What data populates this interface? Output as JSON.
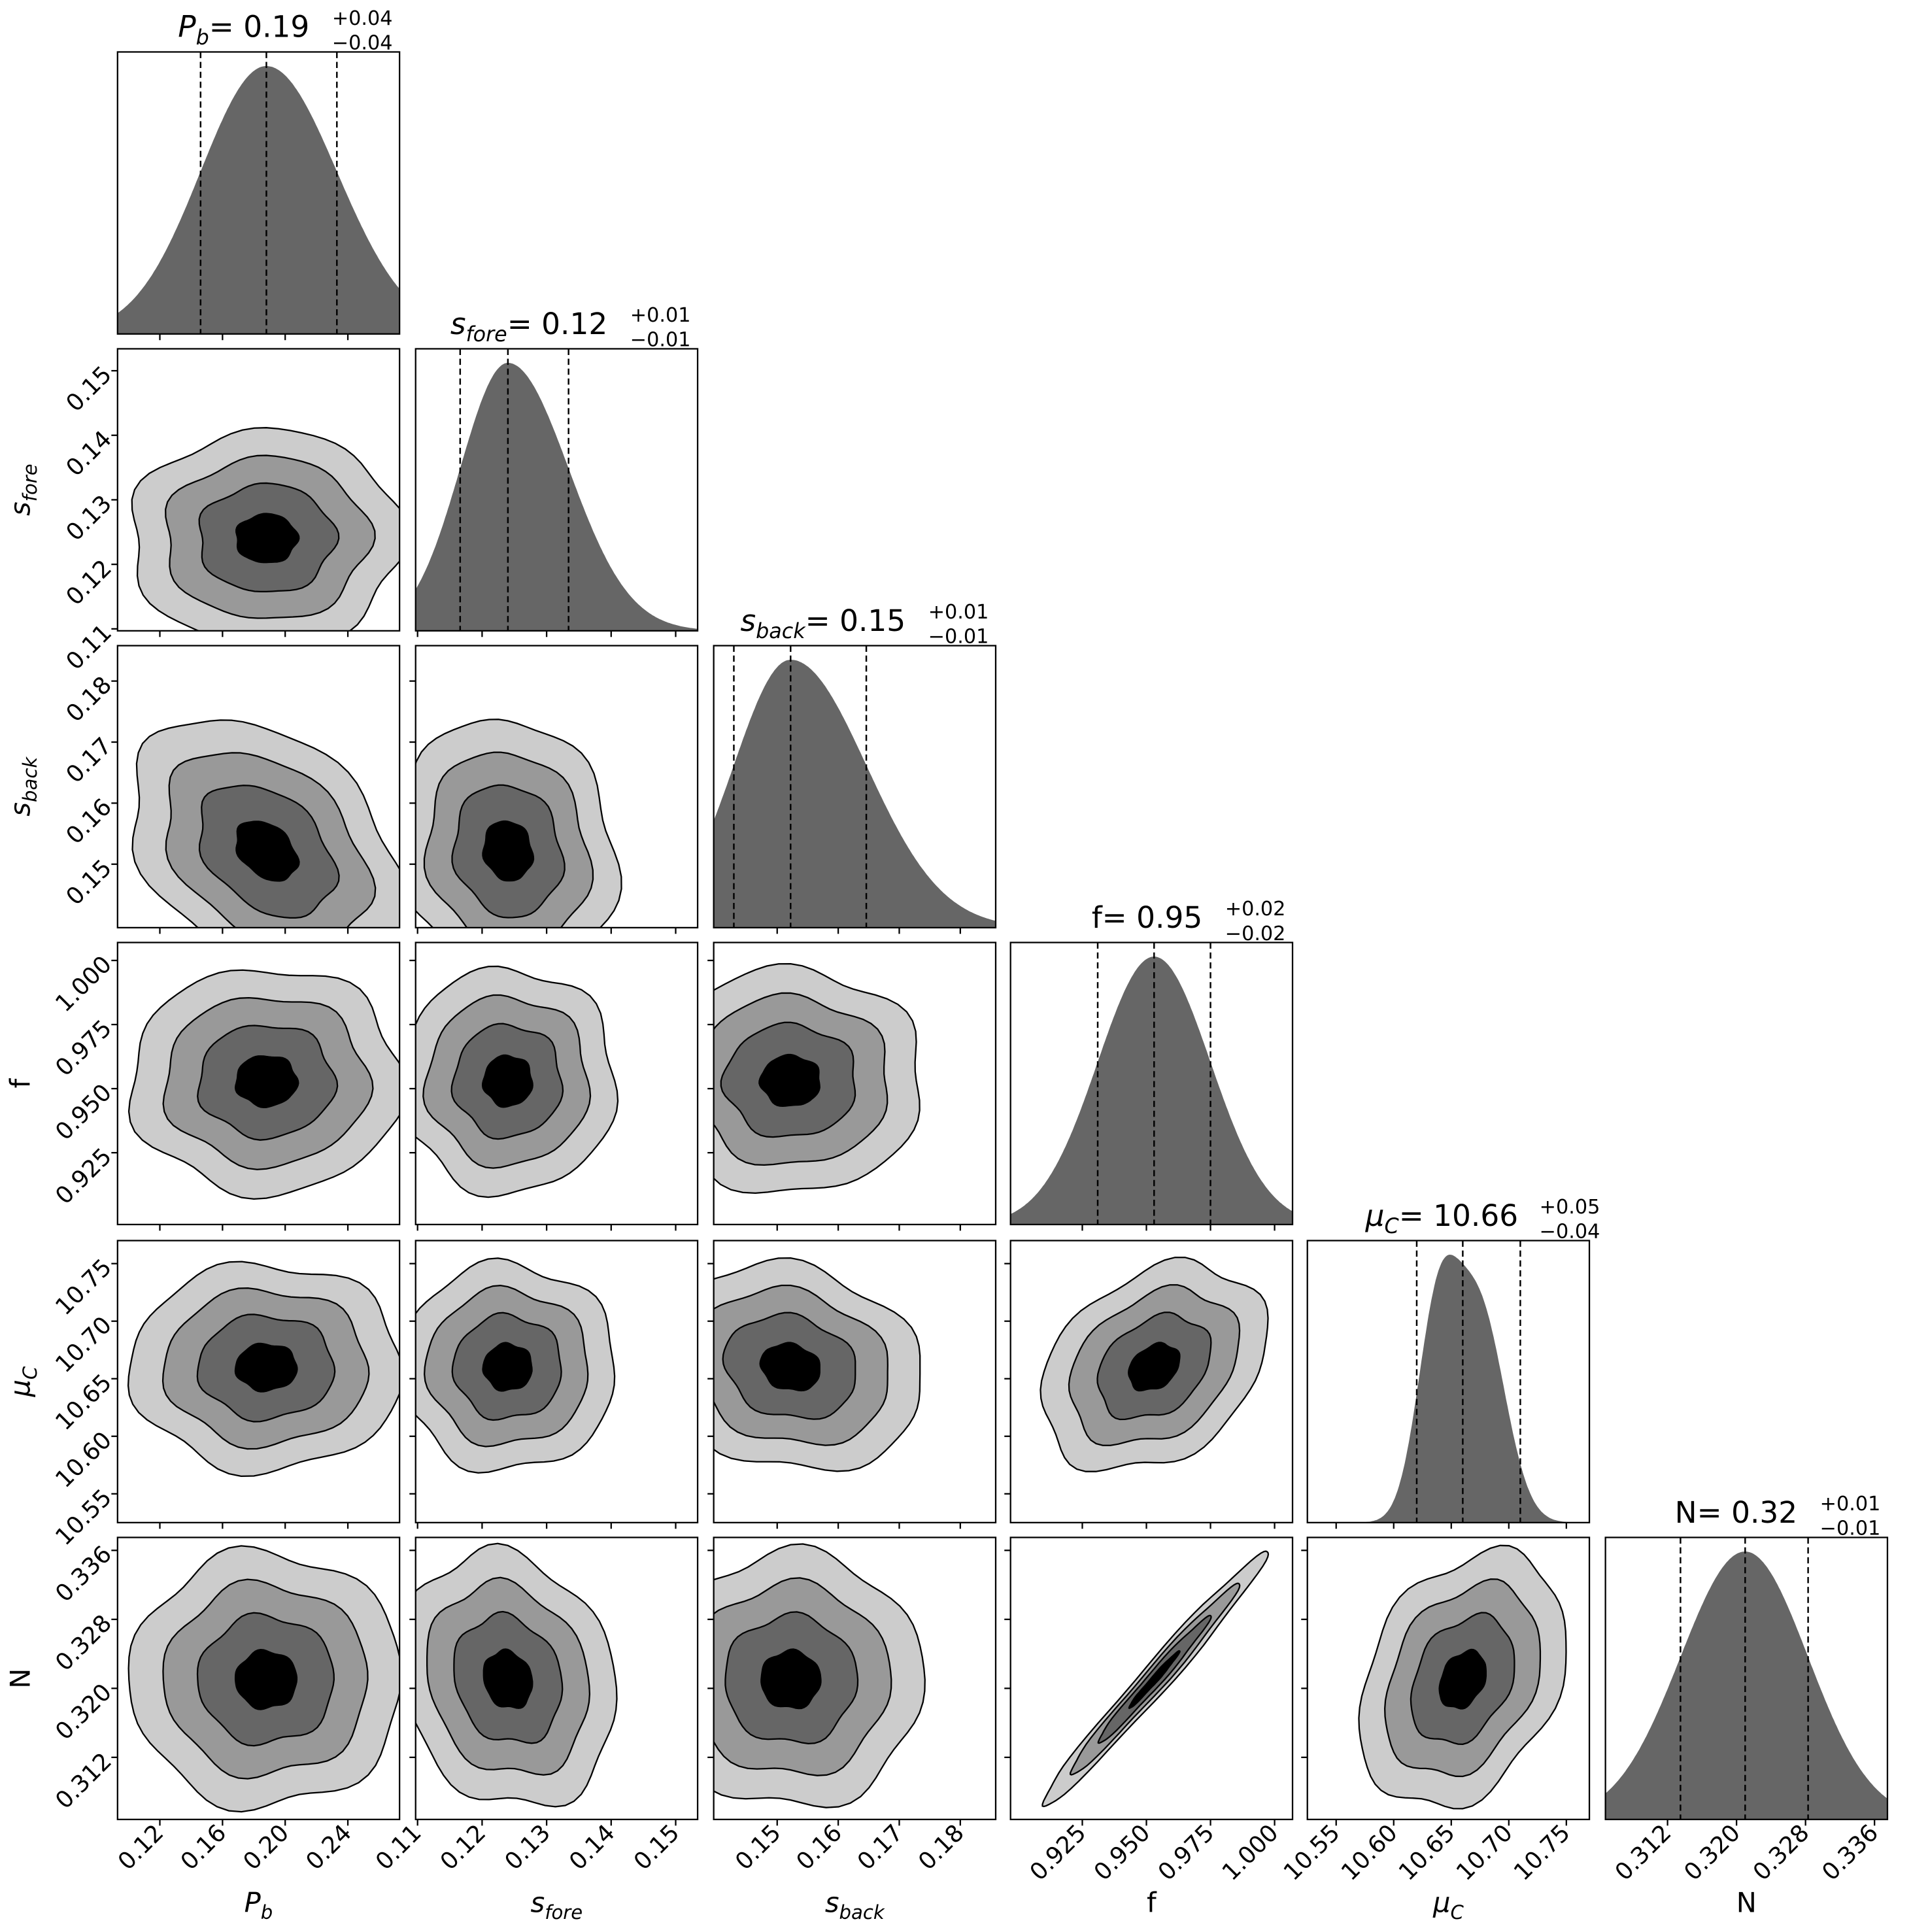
{
  "chart_data": {
    "type": "corner",
    "params": [
      {
        "id": "P_b",
        "label": {
          "main": "P",
          "sub": "b",
          "italic": true
        },
        "median": 0.188,
        "q16": 0.146,
        "q84": 0.233,
        "title": {
          "eq": " = 0.19",
          "plus": "+0.04",
          "minus": "−0.04"
        },
        "range": [
          0.093,
          0.273
        ],
        "ticks": [
          0.12,
          0.16,
          0.2,
          0.24
        ],
        "tick_labels": [
          "0.12",
          "0.16",
          "0.20",
          "0.24"
        ]
      },
      {
        "id": "s_fore",
        "label": {
          "main": "s",
          "sub": "fore",
          "italic": true
        },
        "median": 0.124,
        "q16": 0.1166,
        "q84": 0.1334,
        "title": {
          "eq": " = 0.12",
          "plus": "+0.01",
          "minus": "−0.01"
        },
        "range": [
          0.1097,
          0.1534
        ],
        "ticks": [
          0.11,
          0.12,
          0.13,
          0.14,
          0.15
        ],
        "tick_labels": [
          "0.11",
          "0.12",
          "0.13",
          "0.14",
          "0.15"
        ]
      },
      {
        "id": "s_back",
        "label": {
          "main": "s",
          "sub": "back",
          "italic": true
        },
        "median": 0.1522,
        "q16": 0.1429,
        "q84": 0.1646,
        "title": {
          "eq": " = 0.15",
          "plus": "+0.01",
          "minus": "−0.01"
        },
        "range": [
          0.1396,
          0.1858
        ],
        "ticks": [
          0.15,
          0.16,
          0.17,
          0.18
        ],
        "tick_labels": [
          "0.15",
          "0.16",
          "0.17",
          "0.18"
        ]
      },
      {
        "id": "f",
        "label": {
          "main": "f",
          "sub": "",
          "italic": false
        },
        "median": 0.953,
        "q16": 0.931,
        "q84": 0.975,
        "title": {
          "eq": " = 0.95",
          "plus": "+0.02",
          "minus": "−0.02"
        },
        "range": [
          0.897,
          1.007
        ],
        "ticks": [
          0.925,
          0.95,
          0.975,
          1.0
        ],
        "tick_labels": [
          "0.925",
          "0.950",
          "0.975",
          "1.000"
        ]
      },
      {
        "id": "mu_C",
        "label": {
          "main": "μ",
          "sub": "C",
          "italic": true
        },
        "median": 10.66,
        "q16": 10.62,
        "q84": 10.71,
        "title": {
          "eq": " = 10.66",
          "plus": "+0.05",
          "minus": "−0.04"
        },
        "range": [
          10.525,
          10.77
        ],
        "ticks": [
          10.55,
          10.6,
          10.65,
          10.7,
          10.75
        ],
        "tick_labels": [
          "10.55",
          "10.60",
          "10.65",
          "10.70",
          "10.75"
        ]
      },
      {
        "id": "N",
        "label": {
          "main": "N",
          "sub": "",
          "italic": false
        },
        "median": 0.321,
        "q16": 0.3135,
        "q84": 0.3283,
        "title": {
          "eq": " = 0.32",
          "plus": "+0.01",
          "minus": "−0.01"
        },
        "range": [
          0.3048,
          0.3375
        ],
        "ticks": [
          0.312,
          0.32,
          0.328,
          0.336
        ],
        "tick_labels": [
          "0.312",
          "0.320",
          "0.328",
          "0.336"
        ]
      }
    ],
    "correlations": {
      "P_b|s_back": -0.35,
      "s_fore|s_back": -0.1,
      "s_fore|N": -0.15,
      "f|N": 0.985,
      "f|mu_C": 0.3,
      "mu_C|N": 0.3,
      "s_back|mu_C": -0.15
    },
    "contour_levels_sigma": [
      2.0,
      1.5,
      1.0,
      0.45
    ],
    "colors": {
      "hist": "#666666",
      "contours": [
        "#cccccc",
        "#999999",
        "#666666",
        "#000000"
      ],
      "axis": "#000000"
    }
  }
}
